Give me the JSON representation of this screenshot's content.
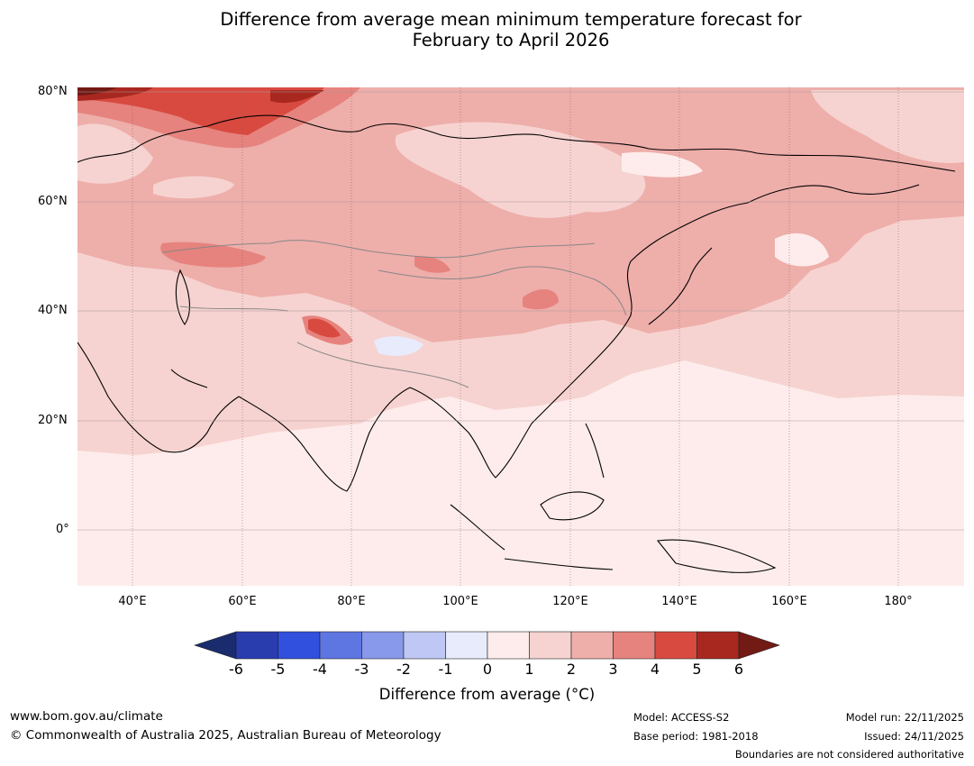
{
  "title": {
    "line1": "Difference from average mean minimum temperature forecast for",
    "line2": "February to April 2026"
  },
  "map": {
    "region": "Asia",
    "latitude_labels": [
      "80°N",
      "60°N",
      "40°N",
      "20°N",
      "0°"
    ],
    "longitude_labels": [
      "40°E",
      "60°E",
      "80°E",
      "100°E",
      "120°E",
      "140°E",
      "160°E",
      "180°"
    ]
  },
  "colorbar": {
    "label": "Difference from average (°C)",
    "ticks": [
      "-6",
      "-5",
      "-4",
      "-3",
      "-2",
      "-1",
      "0",
      "1",
      "2",
      "3",
      "4",
      "5",
      "6"
    ],
    "colors": {
      "below_min": "#1a2c6e",
      "c1": "#2a3daf",
      "c2": "#3050dd",
      "c3": "#5e76e2",
      "c4": "#8898ea",
      "c5": "#bfc8f4",
      "c6": "#e8ebfb",
      "c7": "#fdeceb",
      "c8": "#f6d3d0",
      "c9": "#eeaeaa",
      "c10": "#e6837e",
      "c11": "#d84a40",
      "c12": "#a82820",
      "above_max": "#721a14"
    }
  },
  "footer": {
    "website": "www.bom.gov.au/climate",
    "copyright": "© Commonwealth of Australia 2025, Australian Bureau of Meteorology",
    "model": "Model: ACCESS-S2",
    "base_period": "Base period: 1981-2018",
    "model_run": "Model run: 22/11/2025",
    "issued": "Issued: 24/11/2025",
    "disclaimer": "Boundaries are not considered authoritative"
  }
}
